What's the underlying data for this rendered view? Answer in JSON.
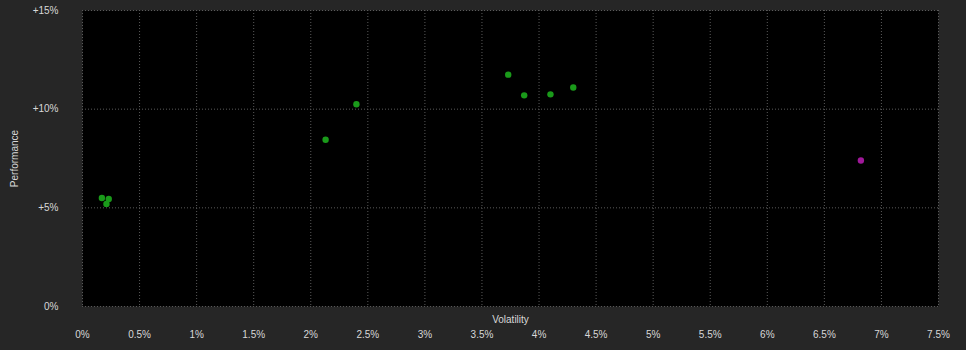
{
  "chart_data": {
    "type": "scatter",
    "x_label": "Volatility",
    "y_label": "Performance",
    "x": [
      0.17,
      0.23,
      0.21,
      2.13,
      2.4,
      3.73,
      3.87,
      4.1,
      4.3,
      6.82
    ],
    "values": [
      5.5,
      5.45,
      5.2,
      8.45,
      10.25,
      11.75,
      10.7,
      10.75,
      11.1,
      7.4
    ],
    "colors": [
      "#1a9a1a",
      "#1a9a1a",
      "#1a9a1a",
      "#1a9a1a",
      "#1a9a1a",
      "#1a9a1a",
      "#1a9a1a",
      "#1a9a1a",
      "#1a9a1a",
      "#a0189a"
    ],
    "xlim": [
      0,
      7.5
    ],
    "ylim": [
      0,
      15
    ],
    "xticks": [
      {
        "value": 0,
        "label": "0%"
      },
      {
        "value": 0.5,
        "label": "0.5%"
      },
      {
        "value": 1,
        "label": "1%"
      },
      {
        "value": 1.5,
        "label": "1.5%"
      },
      {
        "value": 2,
        "label": "2%"
      },
      {
        "value": 2.5,
        "label": "2.5%"
      },
      {
        "value": 3,
        "label": "3%"
      },
      {
        "value": 3.5,
        "label": "3.5%"
      },
      {
        "value": 4,
        "label": "4%"
      },
      {
        "value": 4.5,
        "label": "4.5%"
      },
      {
        "value": 5,
        "label": "5%"
      },
      {
        "value": 5.5,
        "label": "5.5%"
      },
      {
        "value": 6,
        "label": "6%"
      },
      {
        "value": 6.5,
        "label": "6.5%"
      },
      {
        "value": 7,
        "label": "7%"
      },
      {
        "value": 7.5,
        "label": "7.5%"
      }
    ],
    "yticks": [
      {
        "value": 0,
        "label": "0%"
      },
      {
        "value": 5,
        "label": "+5%"
      },
      {
        "value": 10,
        "label": "+10%"
      },
      {
        "value": 15,
        "label": "+15%"
      }
    ],
    "grid": true
  }
}
